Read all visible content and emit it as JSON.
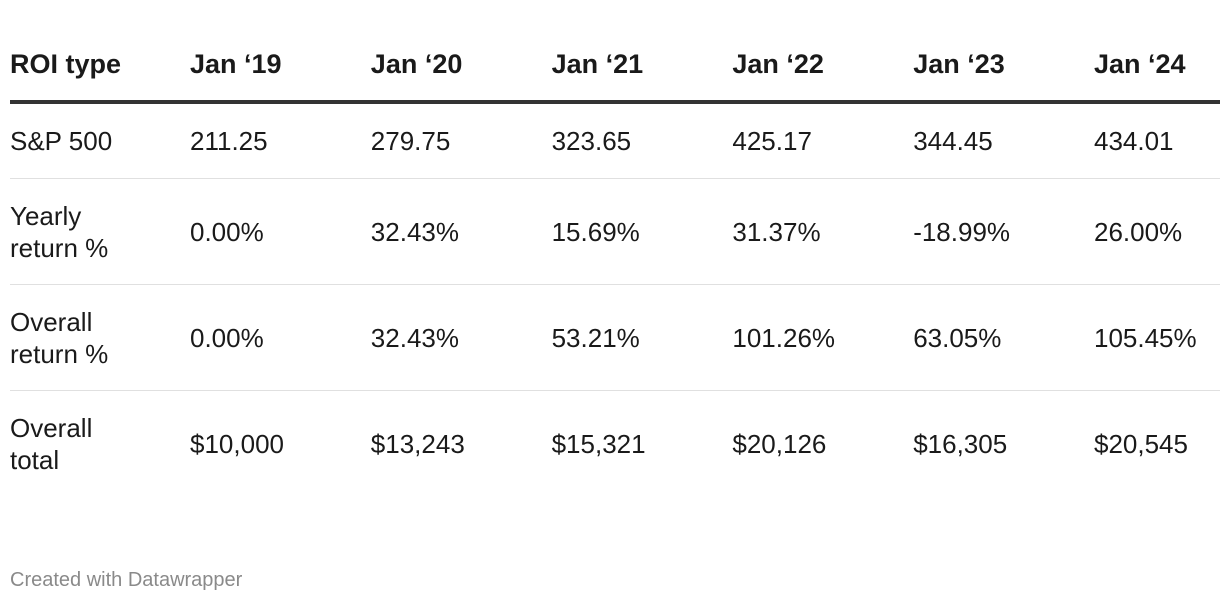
{
  "chart_data": {
    "type": "table",
    "columns": [
      "ROI type",
      "Jan ‘19",
      "Jan ‘20",
      "Jan ‘21",
      "Jan ‘22",
      "Jan ‘23",
      "Jan ‘24"
    ],
    "rows": [
      {
        "label": "S&P 500",
        "values": [
          "211.25",
          "279.75",
          "323.65",
          "425.17",
          "344.45",
          "434.01"
        ]
      },
      {
        "label": "Yearly return %",
        "values": [
          "0.00%",
          "32.43%",
          "15.69%",
          "31.37%",
          "-18.99%",
          "26.00%"
        ]
      },
      {
        "label": "Overall return %",
        "values": [
          "0.00%",
          "32.43%",
          "53.21%",
          "101.26%",
          "63.05%",
          "105.45%"
        ]
      },
      {
        "label": "Overall total",
        "values": [
          "$10,000",
          "$13,243",
          "$15,321",
          "$20,126",
          "$16,305",
          "$20,545"
        ]
      }
    ]
  },
  "footer": {
    "credit": "Created with Datawrapper"
  },
  "colors": {
    "header_rule": "#333333",
    "row_divider": "#e0e0e0",
    "text": "#1a1a1a",
    "footer": "#8a8a8a"
  }
}
